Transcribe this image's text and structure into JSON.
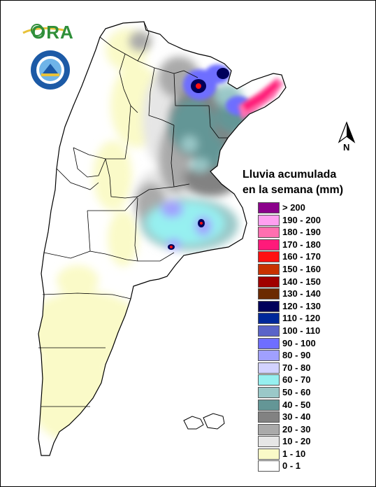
{
  "map": {
    "legend_title_line1": "Lluvia acumulada",
    "legend_title_line2": "en la semana (mm)",
    "north_label": "N",
    "logo_text": "ORA",
    "legend": [
      {
        "label": "> 200",
        "color": "#8b008b"
      },
      {
        "label": "190 - 200",
        "color": "#ff9ff0"
      },
      {
        "label": "180 - 190",
        "color": "#ff6fb0"
      },
      {
        "label": "170 - 180",
        "color": "#ff1a7a"
      },
      {
        "label": "160 - 170",
        "color": "#ff1010"
      },
      {
        "label": "150 - 160",
        "color": "#c83200"
      },
      {
        "label": "140 - 150",
        "color": "#a00000"
      },
      {
        "label": "130 - 140",
        "color": "#6b2a00"
      },
      {
        "label": "120 - 130",
        "color": "#00005a"
      },
      {
        "label": "110 - 120",
        "color": "#00289a"
      },
      {
        "label": "100 - 110",
        "color": "#5a64c8"
      },
      {
        "label": "90 - 100",
        "color": "#6e6eff"
      },
      {
        "label": "80 - 90",
        "color": "#a0a0ff"
      },
      {
        "label": "70 - 80",
        "color": "#d2d2ff"
      },
      {
        "label": "60 - 70",
        "color": "#96f0f0"
      },
      {
        "label": "50 - 60",
        "color": "#9ac8c8"
      },
      {
        "label": "40 - 50",
        "color": "#649696"
      },
      {
        "label": "30 - 40",
        "color": "#828282"
      },
      {
        "label": "20 - 30",
        "color": "#aaaaaa"
      },
      {
        "label": "10 - 20",
        "color": "#e6e6e6"
      },
      {
        "label": "1 - 10",
        "color": "#fafac8"
      },
      {
        "label": "0 - 1",
        "color": "#ffffff"
      }
    ]
  }
}
